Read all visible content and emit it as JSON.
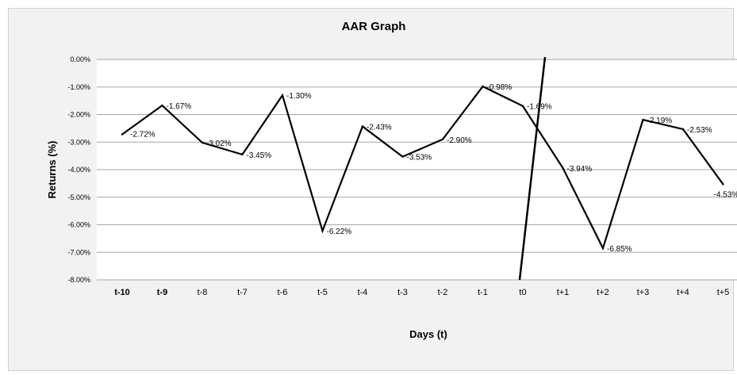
{
  "chart_data": {
    "type": "line",
    "title": "AAR Graph",
    "xlabel": "Days (t)",
    "ylabel": "Returns (%)",
    "categories": [
      "t-10",
      "t-9",
      "t-8",
      "t-7",
      "t-6",
      "t-5",
      "t-4",
      "t-3",
      "t-2",
      "t-1",
      "t0",
      "t+1",
      "t+2",
      "t+3",
      "t+4",
      "t+5"
    ],
    "values": [
      -2.72,
      -1.67,
      -3.02,
      -3.45,
      -1.3,
      -6.22,
      -2.43,
      -3.53,
      -2.9,
      -0.98,
      -1.69,
      -3.94,
      -6.85,
      -2.19,
      -2.53,
      -4.53
    ],
    "data_labels": [
      "-2.72%",
      "-1.67%",
      "-3.02%",
      "-3.45%",
      "-1.30%",
      "-6.22%",
      "-2.43%",
      "-3.53%",
      "-2.90%",
      "-0.98%",
      "-1.69%",
      "-3.94%",
      "-6.85%",
      "-2.19%",
      "-2.53%",
      "-4.53%"
    ],
    "y_ticks": [
      "0.00%",
      "-1.00%",
      "-2.00%",
      "-3.00%",
      "-4.00%",
      "-5.00%",
      "-6.00%",
      "-7.00%",
      "-8.00%"
    ],
    "ylim": [
      -8,
      0
    ],
    "grid": true,
    "legend": "none",
    "event_marker": "t0",
    "colors": {
      "line": "#000000",
      "grid": "#a6a6a6",
      "background": "#f2f2f2",
      "plot": "#ffffff"
    }
  }
}
